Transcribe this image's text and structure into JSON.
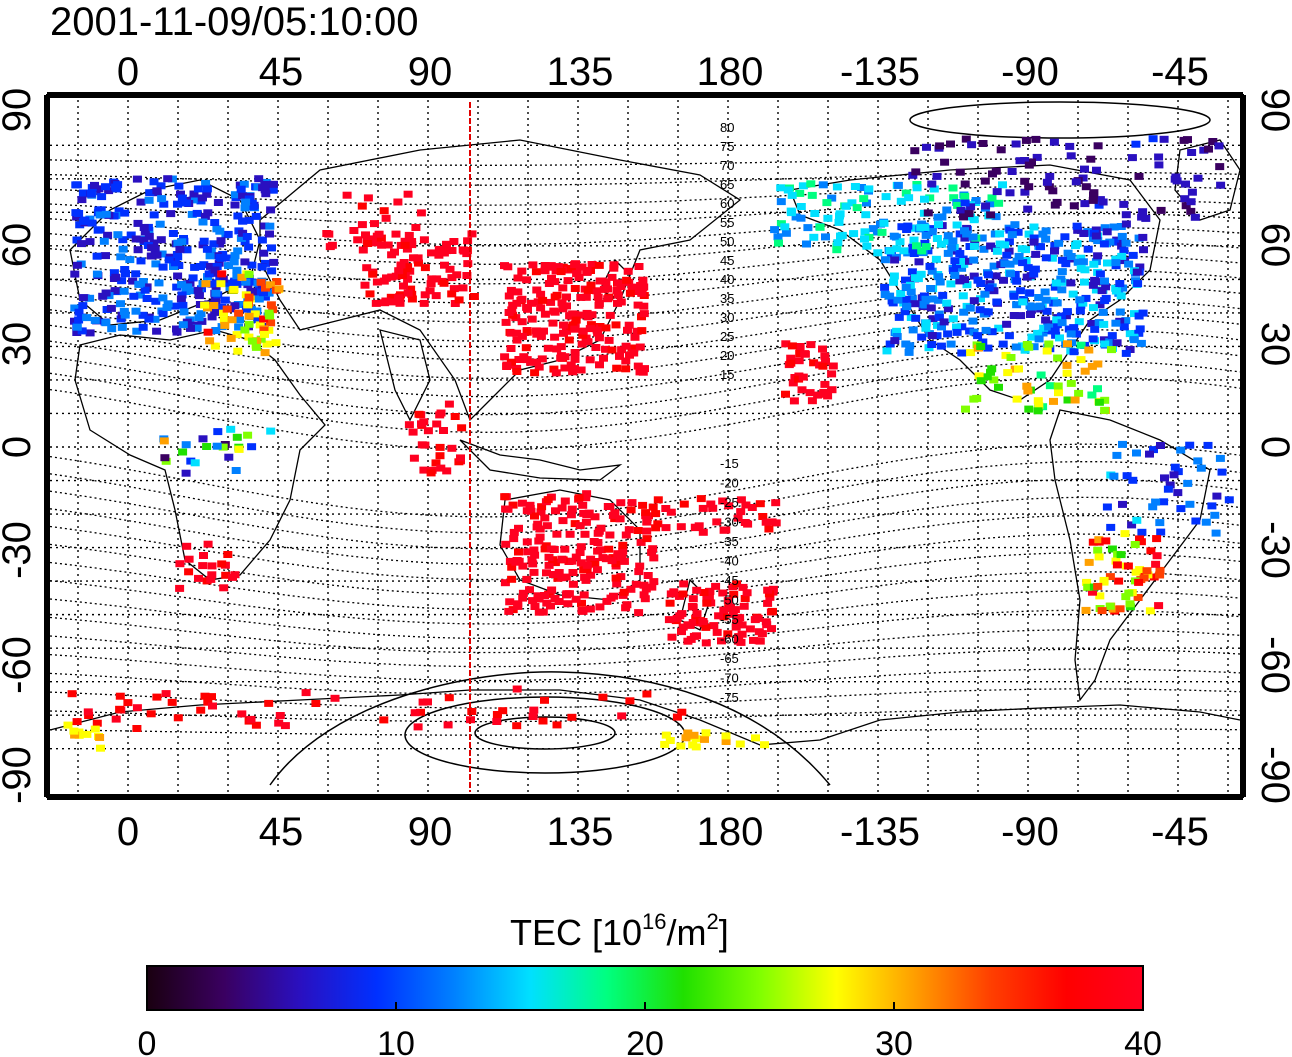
{
  "timestamp": "2001-11-09/05:10:00",
  "map": {
    "top_axis_labels": [
      "0",
      "45",
      "90",
      "135",
      "180",
      "-135",
      "-90",
      "-45"
    ],
    "bottom_axis_labels": [
      "0",
      "45",
      "90",
      "135",
      "180",
      "-135",
      "-90",
      "-45"
    ],
    "left_axis_labels": [
      "90",
      "60",
      "30",
      "0",
      "-30",
      "-60",
      "-90"
    ],
    "right_axis_labels": [
      "90",
      "60",
      "30",
      "0",
      "-30",
      "-60",
      "-90"
    ],
    "contour_labels_north": [
      "80",
      "75",
      "70",
      "65",
      "60",
      "55",
      "50",
      "45",
      "40",
      "35",
      "30",
      "25",
      "20",
      "15"
    ],
    "contour_labels_south": [
      "-15",
      "-20",
      "-25",
      "-30",
      "-35",
      "-40",
      "-45",
      "-50",
      "-55",
      "-60",
      "-65",
      "-70",
      "-75"
    ],
    "terminator_longitude": 102
  },
  "colorbar": {
    "title": "TEC  [10",
    "title_sup1": "16",
    "title_mid": "/m",
    "title_sup2": "2",
    "title_end": "]",
    "tick_labels": [
      "0",
      "10",
      "20",
      "30",
      "40"
    ],
    "min": 0,
    "max": 40,
    "colors": [
      "#1a0010",
      "#3a0060",
      "#2a10c0",
      "#0030ff",
      "#0080ff",
      "#00e0ff",
      "#00ff80",
      "#20e000",
      "#80ff00",
      "#ffff00",
      "#ffa000",
      "#ff4000",
      "#ff0000",
      "#ff0020"
    ]
  }
}
